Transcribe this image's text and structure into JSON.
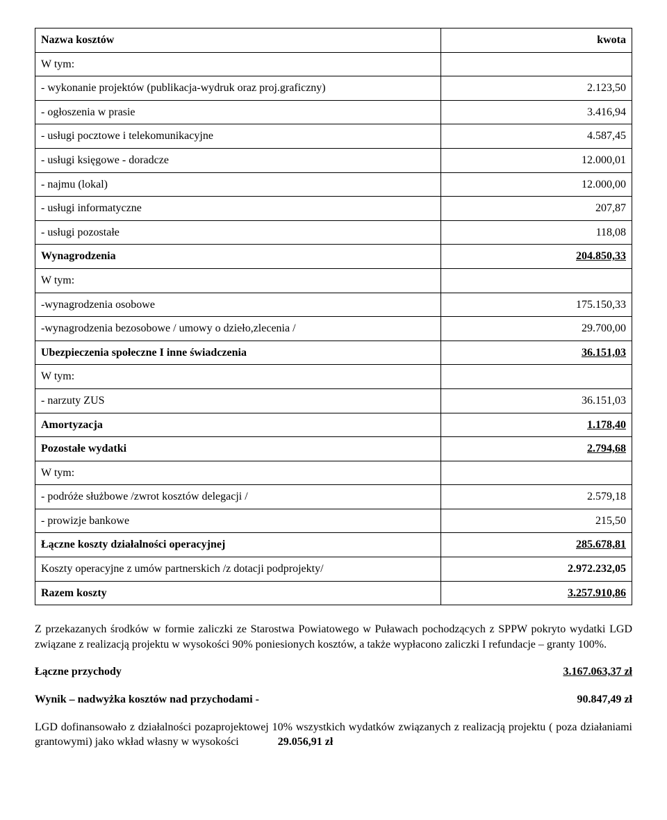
{
  "table": {
    "headers": {
      "name": "Nazwa kosztów",
      "amount": "kwota"
    },
    "rows": [
      {
        "label": "W tym:",
        "value": "",
        "label_bold": false,
        "value_bold": false,
        "value_underline": false
      },
      {
        "label": "- wykonanie projektów (publikacja-wydruk oraz proj.graficzny)",
        "value": "2.123,50",
        "label_bold": false,
        "value_bold": false,
        "value_underline": false
      },
      {
        "label": "- ogłoszenia w prasie",
        "value": "3.416,94",
        "label_bold": false,
        "value_bold": false,
        "value_underline": false
      },
      {
        "label": "- usługi pocztowe i telekomunikacyjne",
        "value": "4.587,45",
        "label_bold": false,
        "value_bold": false,
        "value_underline": false
      },
      {
        "label": "- usługi księgowe - doradcze",
        "value": "12.000,01",
        "label_bold": false,
        "value_bold": false,
        "value_underline": false
      },
      {
        "label": "- najmu (lokal)",
        "value": "12.000,00",
        "label_bold": false,
        "value_bold": false,
        "value_underline": false
      },
      {
        "label": "- usługi informatyczne",
        "value": "207,87",
        "label_bold": false,
        "value_bold": false,
        "value_underline": false
      },
      {
        "label": "- usługi pozostałe",
        "value": "118,08",
        "label_bold": false,
        "value_bold": false,
        "value_underline": false
      },
      {
        "label": "Wynagrodzenia",
        "value": "204.850,33",
        "label_bold": true,
        "value_bold": true,
        "value_underline": true
      },
      {
        "label": "W tym:",
        "value": "",
        "label_bold": false,
        "value_bold": false,
        "value_underline": false
      },
      {
        "label": "-wynagrodzenia osobowe",
        "value": "175.150,33",
        "label_bold": false,
        "value_bold": false,
        "value_underline": false
      },
      {
        "label": "-wynagrodzenia bezosobowe / umowy o dzieło,zlecenia /",
        "value": "29.700,00",
        "label_bold": false,
        "value_bold": false,
        "value_underline": false
      },
      {
        "label": "Ubezpieczenia społeczne I inne świadczenia",
        "value": "36.151,03",
        "label_bold": true,
        "value_bold": true,
        "value_underline": true
      },
      {
        "label": "W tym:",
        "value": "",
        "label_bold": false,
        "value_bold": false,
        "value_underline": false
      },
      {
        "label": "- narzuty ZUS",
        "value": "36.151,03",
        "label_bold": false,
        "value_bold": false,
        "value_underline": false
      },
      {
        "label": "Amortyzacja",
        "value": "1.178,40",
        "label_bold": true,
        "value_bold": true,
        "value_underline": true
      },
      {
        "label": "Pozostałe wydatki",
        "value": "2.794,68",
        "label_bold": true,
        "value_bold": true,
        "value_underline": true
      },
      {
        "label": "W tym:",
        "value": "",
        "label_bold": false,
        "value_bold": false,
        "value_underline": false
      },
      {
        "label": "- podróże służbowe /zwrot kosztów delegacji /",
        "value": "2.579,18",
        "label_bold": false,
        "value_bold": false,
        "value_underline": false
      },
      {
        "label": "- prowizje bankowe",
        "value": "215,50",
        "label_bold": false,
        "value_bold": false,
        "value_underline": false
      },
      {
        "label": "Łączne koszty działalności operacyjnej",
        "value": "285.678,81",
        "label_bold": true,
        "value_bold": true,
        "value_underline": true
      },
      {
        "label": "Koszty operacyjne z umów partnerskich /z dotacji podprojekty/",
        "value": "2.972.232,05",
        "label_bold": false,
        "value_bold": true,
        "value_underline": false
      },
      {
        "label": "Razem koszty",
        "value": "3.257.910,86",
        "label_bold": true,
        "value_bold": true,
        "value_underline": true
      }
    ]
  },
  "para1": "Z przekazanych środków w formie zaliczki ze Starostwa Powiatowego w Puławach pochodzących z SPPW pokryto wydatki LGD związane z realizacją projektu w wysokości 90% poniesionych kosztów, a także wypłacono zaliczki I refundacje – granty 100%.",
  "summary": {
    "income_label": "Łączne przychody",
    "income_value": " 3.167.063,37 zł",
    "result_label": "Wynik – nadwyżka kosztów nad przychodami -",
    "result_value": "90.847,49 zł"
  },
  "para2_text": "LGD dofinansowało  z działalności pozaprojektowej 10%  wszystkich wydatków związanych z realizacją projektu ( poza działaniami grantowymi) jako wkład własny w wysokości",
  "para2_value": "29.056,91 zł"
}
